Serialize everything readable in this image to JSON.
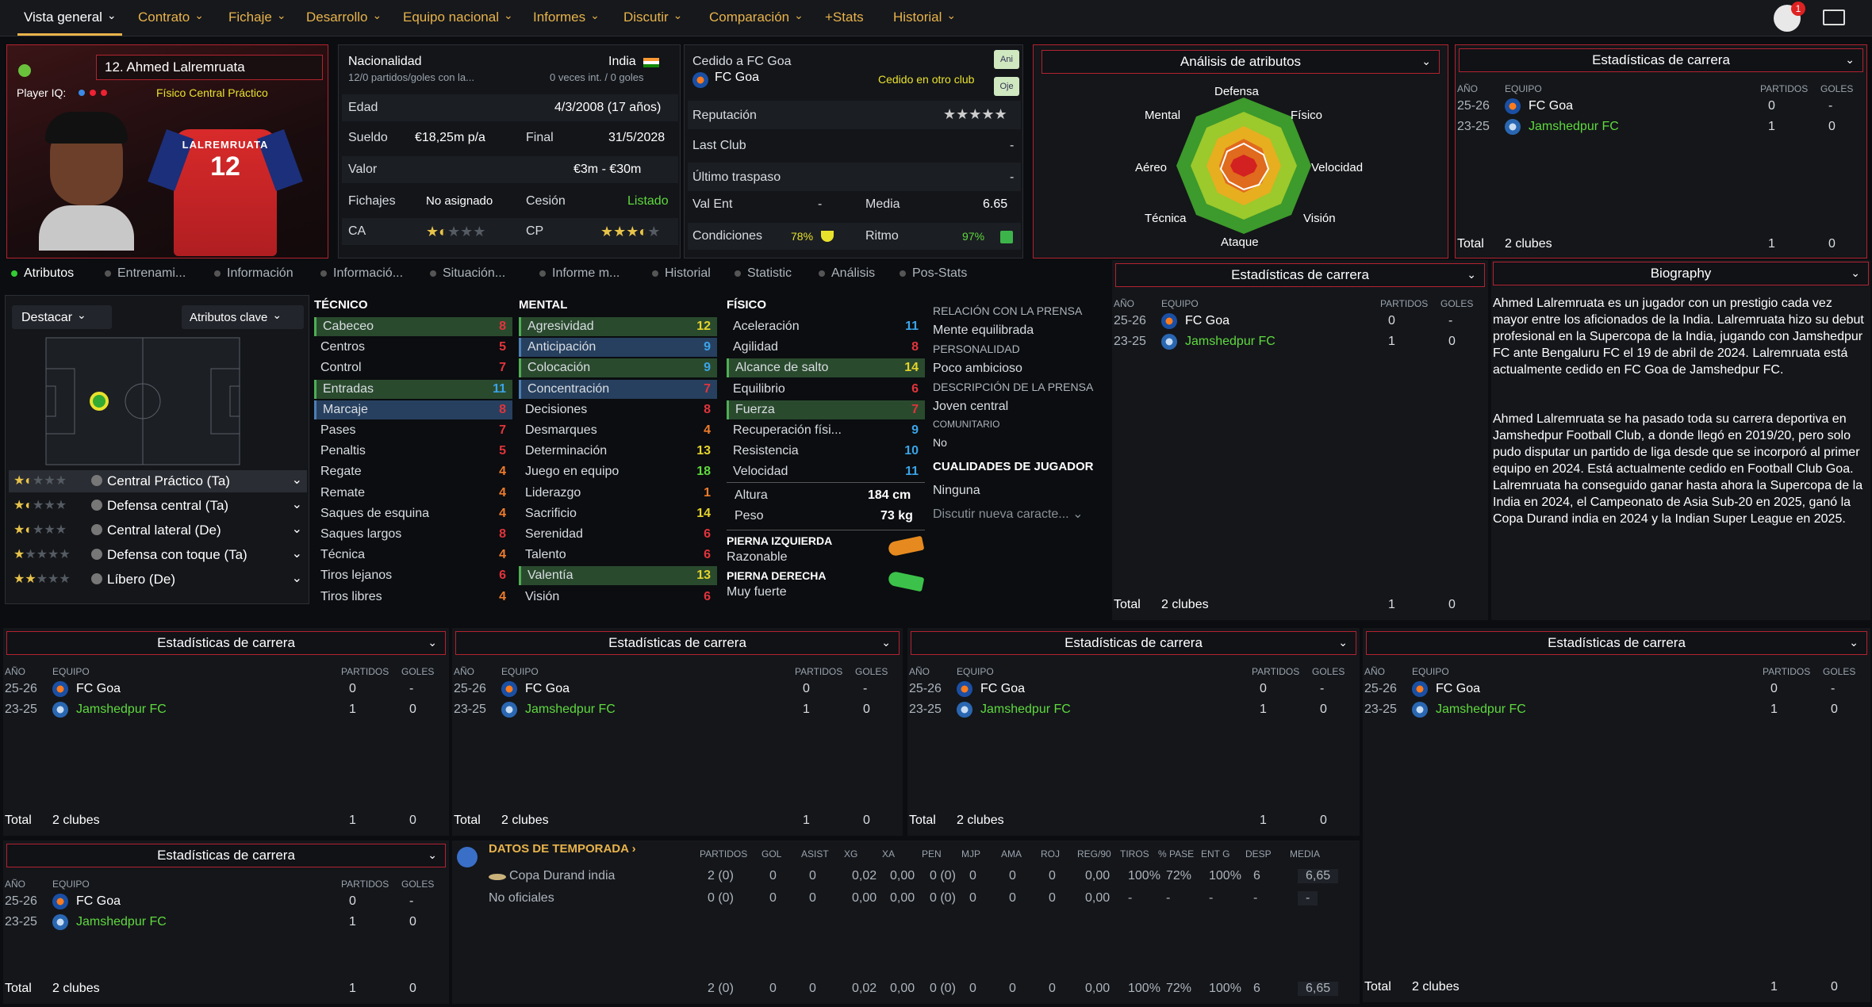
{
  "nav": {
    "items": [
      "Vista general",
      "Contrato",
      "Fichaje",
      "Desarrollo",
      "Equipo nacional",
      "Informes",
      "Discutir",
      "Comparación",
      "+Stats",
      "Historial"
    ],
    "notif_count": "1"
  },
  "player": {
    "name": "12. Ahmed Lalremruata",
    "iq_label": "Player IQ:",
    "roles": [
      "Físico",
      "Central Práctico"
    ],
    "shirt_name": "LALREMRUATA",
    "shirt_number": "12"
  },
  "info": {
    "nationality_label": "Nacionalidad",
    "nationality": "India",
    "caps": "12/0 partidos/goles con la...",
    "caps_value": "0 veces int. / 0 goles",
    "age_label": "Edad",
    "age": "4/3/2008 (17 años)",
    "wage_label": "Sueldo",
    "wage": "€18,25m p/a",
    "end_label": "Final",
    "end": "31/5/2028",
    "value_label": "Valor",
    "value": "€3m - €30m",
    "transfers_label": "Fichajes",
    "transfers": "No asignado",
    "loan_label": "Cesión",
    "loan": "Listado",
    "ca_label": "CA",
    "cp_label": "CP",
    "ca_stars": 1.5,
    "cp_stars": 3.5,
    "loaned_label": "Cedido a FC Goa",
    "loaned_club": "FC Goa",
    "loaned_status": "Cedido en otro club",
    "btn1": "Ani",
    "btn2": "Oje",
    "reputation_label": "Reputación",
    "last_club_label": "Last Club",
    "last_club": "-",
    "last_transfer_label": "Último traspaso",
    "last_transfer": "-",
    "val_ent_label": "Val Ent",
    "val_ent": "-",
    "media_label": "Media",
    "media": "6.65",
    "cond_label": "Condiciones",
    "cond": "78%",
    "rhythm_label": "Ritmo",
    "rhythm": "97%"
  },
  "radar": {
    "title": "Análisis de atributos",
    "labels": [
      "Defensa",
      "Físico",
      "Velocidad",
      "Visión",
      "Ataque",
      "Técnica",
      "Aéreo",
      "Mental"
    ]
  },
  "career": {
    "title": "Estadísticas de carrera",
    "col_year": "AÑO",
    "col_team": "EQUIPO",
    "col_apps": "PARTIDOS",
    "col_goals": "GOLES",
    "rows": [
      {
        "year": "25-26",
        "team": "FC Goa",
        "apps": "0",
        "goals": "-"
      },
      {
        "year": "23-25",
        "team": "Jamshedpur FC",
        "apps": "1",
        "goals": "0"
      }
    ],
    "total_label": "Total",
    "total_clubs": "2 clubes",
    "total_apps": "1",
    "total_goals": "0"
  },
  "tabs": [
    "Atributos",
    "Entrenami...",
    "Información",
    "Informació...",
    "Situación...",
    "Informe m...",
    "Historial",
    "Statistic",
    "Análisis",
    "Pos-Stats"
  ],
  "pitch": {
    "dropdown1": "Destacar",
    "dropdown2": "Atributos clave"
  },
  "positions": [
    {
      "name": "Central Práctico (Ta)",
      "stars": 1.5
    },
    {
      "name": "Defensa central (Ta)",
      "stars": 1.5
    },
    {
      "name": "Central lateral (De)",
      "stars": 1.5
    },
    {
      "name": "Defensa con toque (Ta)",
      "stars": 1
    },
    {
      "name": "Líbero (De)",
      "stars": 2
    }
  ],
  "attributes": {
    "technical_title": "TÉCNICO",
    "mental_title": "MENTAL",
    "physical_title": "FÍSICO",
    "technical": [
      {
        "n": "Cabeceo",
        "v": "8"
      },
      {
        "n": "Centros",
        "v": "5"
      },
      {
        "n": "Control",
        "v": "7"
      },
      {
        "n": "Entradas",
        "v": "11"
      },
      {
        "n": "Marcaje",
        "v": "8"
      },
      {
        "n": "Pases",
        "v": "7"
      },
      {
        "n": "Penaltis",
        "v": "5"
      },
      {
        "n": "Regate",
        "v": "4"
      },
      {
        "n": "Remate",
        "v": "4"
      },
      {
        "n": "Saques de esquina",
        "v": "4"
      },
      {
        "n": "Saques largos",
        "v": "8"
      },
      {
        "n": "Técnica",
        "v": "4"
      },
      {
        "n": "Tiros lejanos",
        "v": "6"
      },
      {
        "n": "Tiros libres",
        "v": "4"
      }
    ],
    "mental": [
      {
        "n": "Agresividad",
        "v": "12"
      },
      {
        "n": "Anticipación",
        "v": "9"
      },
      {
        "n": "Colocación",
        "v": "9"
      },
      {
        "n": "Concentración",
        "v": "7"
      },
      {
        "n": "Decisiones",
        "v": "8"
      },
      {
        "n": "Desmarques",
        "v": "4"
      },
      {
        "n": "Determinación",
        "v": "13"
      },
      {
        "n": "Juego en equipo",
        "v": "18"
      },
      {
        "n": "Liderazgo",
        "v": "1"
      },
      {
        "n": "Sacrificio",
        "v": "14"
      },
      {
        "n": "Serenidad",
        "v": "6"
      },
      {
        "n": "Talento",
        "v": "6"
      },
      {
        "n": "Valentía",
        "v": "13"
      },
      {
        "n": "Visión",
        "v": "6"
      }
    ],
    "physical": [
      {
        "n": "Aceleración",
        "v": "11"
      },
      {
        "n": "Agilidad",
        "v": "8"
      },
      {
        "n": "Alcance de salto",
        "v": "14"
      },
      {
        "n": "Equilibrio",
        "v": "6"
      },
      {
        "n": "Fuerza",
        "v": "7"
      },
      {
        "n": "Recuperación físi...",
        "v": "9"
      },
      {
        "n": "Resistencia",
        "v": "10"
      },
      {
        "n": "Velocidad",
        "v": "11"
      }
    ],
    "height_label": "Altura",
    "height": "184 cm",
    "weight_label": "Peso",
    "weight": "73 kg",
    "left_foot_label": "PIERNA IZQUIERDA",
    "left_foot": "Razonable",
    "right_foot_label": "PIERNA DERECHA",
    "right_foot": "Muy fuerte"
  },
  "press": {
    "rel_label": "RELACIÓN CON LA PRENSA",
    "rel": "Mente equilibrada",
    "pers_label": "PERSONALIDAD",
    "pers": "Poco ambicioso",
    "desc_label": "DESCRIPCIÓN DE LA PRENSA",
    "desc": "Joven central",
    "comm_label": "COMUNITARIO",
    "comm": "No",
    "qual_label": "CUALIDADES DE JUGADOR",
    "qual": "Ninguna",
    "discuss": "Discutir nueva caracte..."
  },
  "bio": {
    "title": "Biography",
    "p1": "Ahmed Lalremruata es un jugador con un prestigio cada vez mayor entre los aficionados de la India. Lalremruata hizo su debut profesional en la Supercopa de la India, jugando con Jamshedpur FC ante Bengaluru FC el 19 de abril de 2024. Lalremruata está actualmente cedido en FC Goa de Jamshedpur FC.",
    "p2": "Ahmed Lalremruata se ha pasado toda su carrera deportiva en Jamshedpur Football Club, a donde llegó en 2019/20, pero solo pudo disputar un partido de liga desde que se incorporó al primer equipo en 2024. Está actualmente cedido en Football Club Goa. Lalremruata ha conseguido ganar hasta ahora la Supercopa de la India en 2024, el Campeonato de Asia Sub-20 en 2025, ganó la Copa Durand india en 2024 y la Indian Super League en 2025."
  },
  "season": {
    "title": "DATOS DE TEMPORADA",
    "cols": [
      "PARTIDOS",
      "GOL",
      "ASIST",
      "XG",
      "XA",
      "PEN",
      "MJP",
      "AMA",
      "ROJ",
      "REG/90",
      "TIROS",
      "% PASE",
      "ENT G",
      "DESP",
      "MEDIA"
    ],
    "rows": [
      {
        "name": "Copa Durand india",
        "vals": [
          "2 (0)",
          "0",
          "0",
          "0,02",
          "0,00",
          "0 (0)",
          "0",
          "0",
          "0",
          "0,00",
          "100%",
          "72%",
          "100%",
          "6",
          "6,65"
        ]
      },
      {
        "name": "No oficiales",
        "vals": [
          "0 (0)",
          "0",
          "0",
          "0,00",
          "0,00",
          "0 (0)",
          "0",
          "0",
          "0",
          "0,00",
          "-",
          "-",
          "-",
          "-",
          "-"
        ]
      }
    ],
    "totals": [
      "2 (0)",
      "0",
      "0",
      "0,02",
      "0,00",
      "0 (0)",
      "0",
      "0",
      "0",
      "0,00",
      "100%",
      "72%",
      "100%",
      "6",
      "6,65"
    ]
  },
  "colors": {
    "accent": "#e8b34a",
    "red": "#b22330",
    "green": "#5fd93e"
  }
}
